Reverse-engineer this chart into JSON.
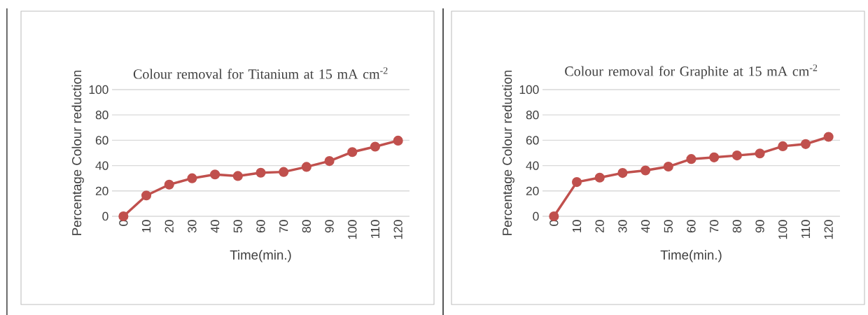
{
  "chart_data": [
    {
      "type": "line",
      "title": "Colour removal for Titanium at 15 mA cm$^{-2}$",
      "xlabel": "Time(min.)",
      "ylabel": "Percentage  Colour reduction",
      "categories": [
        "0",
        "10",
        "20",
        "30",
        "40",
        "50",
        "60",
        "70",
        "80",
        "90",
        "100",
        "110",
        "120"
      ],
      "values": [
        0,
        16.4,
        25,
        30,
        33,
        31.8,
        34.4,
        35,
        39,
        43.6,
        50.7,
        55,
        59.7
      ],
      "color": "#c0504d",
      "ylim": [
        0,
        100
      ],
      "yticks": [
        0,
        20,
        40,
        60,
        80,
        100
      ],
      "grid": "y",
      "marker": "circle"
    },
    {
      "type": "line",
      "title": "Colour removal for Graphite at 15 mA cm$^{-2}$",
      "xlabel": "Time(min.)",
      "ylabel": "Percentage Colour reduction",
      "categories": [
        "0",
        "10",
        "20",
        "30",
        "40",
        "50",
        "60",
        "70",
        "80",
        "90",
        "100",
        "110",
        "120"
      ],
      "values": [
        0,
        27,
        30.5,
        34.2,
        36.2,
        39.2,
        45.2,
        46.5,
        48,
        49.6,
        55.3,
        57,
        62.7
      ],
      "color": "#c0504d",
      "ylim": [
        0,
        100
      ],
      "yticks": [
        0,
        20,
        40,
        60,
        80,
        100
      ],
      "grid": "y",
      "marker": "circle"
    }
  ]
}
